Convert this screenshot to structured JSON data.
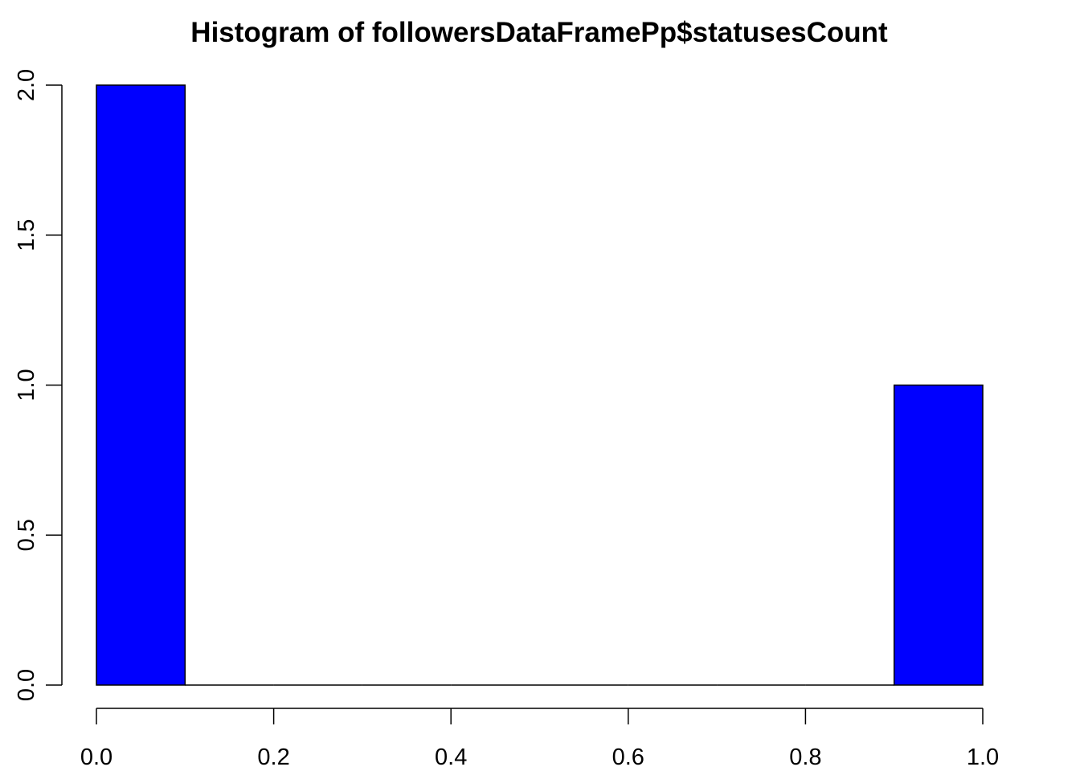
{
  "chart_data": {
    "type": "bar",
    "title": "Histogram of followersDataFramePp$statusesCount",
    "xlabel": "",
    "ylabel": "",
    "bins": [
      {
        "x0": 0.0,
        "x1": 0.1,
        "count": 2
      },
      {
        "x0": 0.1,
        "x1": 0.2,
        "count": 0
      },
      {
        "x0": 0.2,
        "x1": 0.3,
        "count": 0
      },
      {
        "x0": 0.3,
        "x1": 0.4,
        "count": 0
      },
      {
        "x0": 0.4,
        "x1": 0.5,
        "count": 0
      },
      {
        "x0": 0.5,
        "x1": 0.6,
        "count": 0
      },
      {
        "x0": 0.6,
        "x1": 0.7,
        "count": 0
      },
      {
        "x0": 0.7,
        "x1": 0.8,
        "count": 0
      },
      {
        "x0": 0.8,
        "x1": 0.9,
        "count": 0
      },
      {
        "x0": 0.9,
        "x1": 1.0,
        "count": 1
      }
    ],
    "xlim": [
      0.0,
      1.0
    ],
    "ylim": [
      0.0,
      2.0
    ],
    "x_ticks": [
      0.0,
      0.2,
      0.4,
      0.6,
      0.8,
      1.0
    ],
    "x_tick_labels": [
      "0.0",
      "0.2",
      "0.4",
      "0.6",
      "0.8",
      "1.0"
    ],
    "y_ticks": [
      0.0,
      0.5,
      1.0,
      1.5,
      2.0
    ],
    "y_tick_labels": [
      "0.0",
      "0.5",
      "1.0",
      "1.5",
      "2.0"
    ],
    "bar_color": "#0000ff",
    "border_color": "#000000",
    "grid": false,
    "legend": "none"
  }
}
